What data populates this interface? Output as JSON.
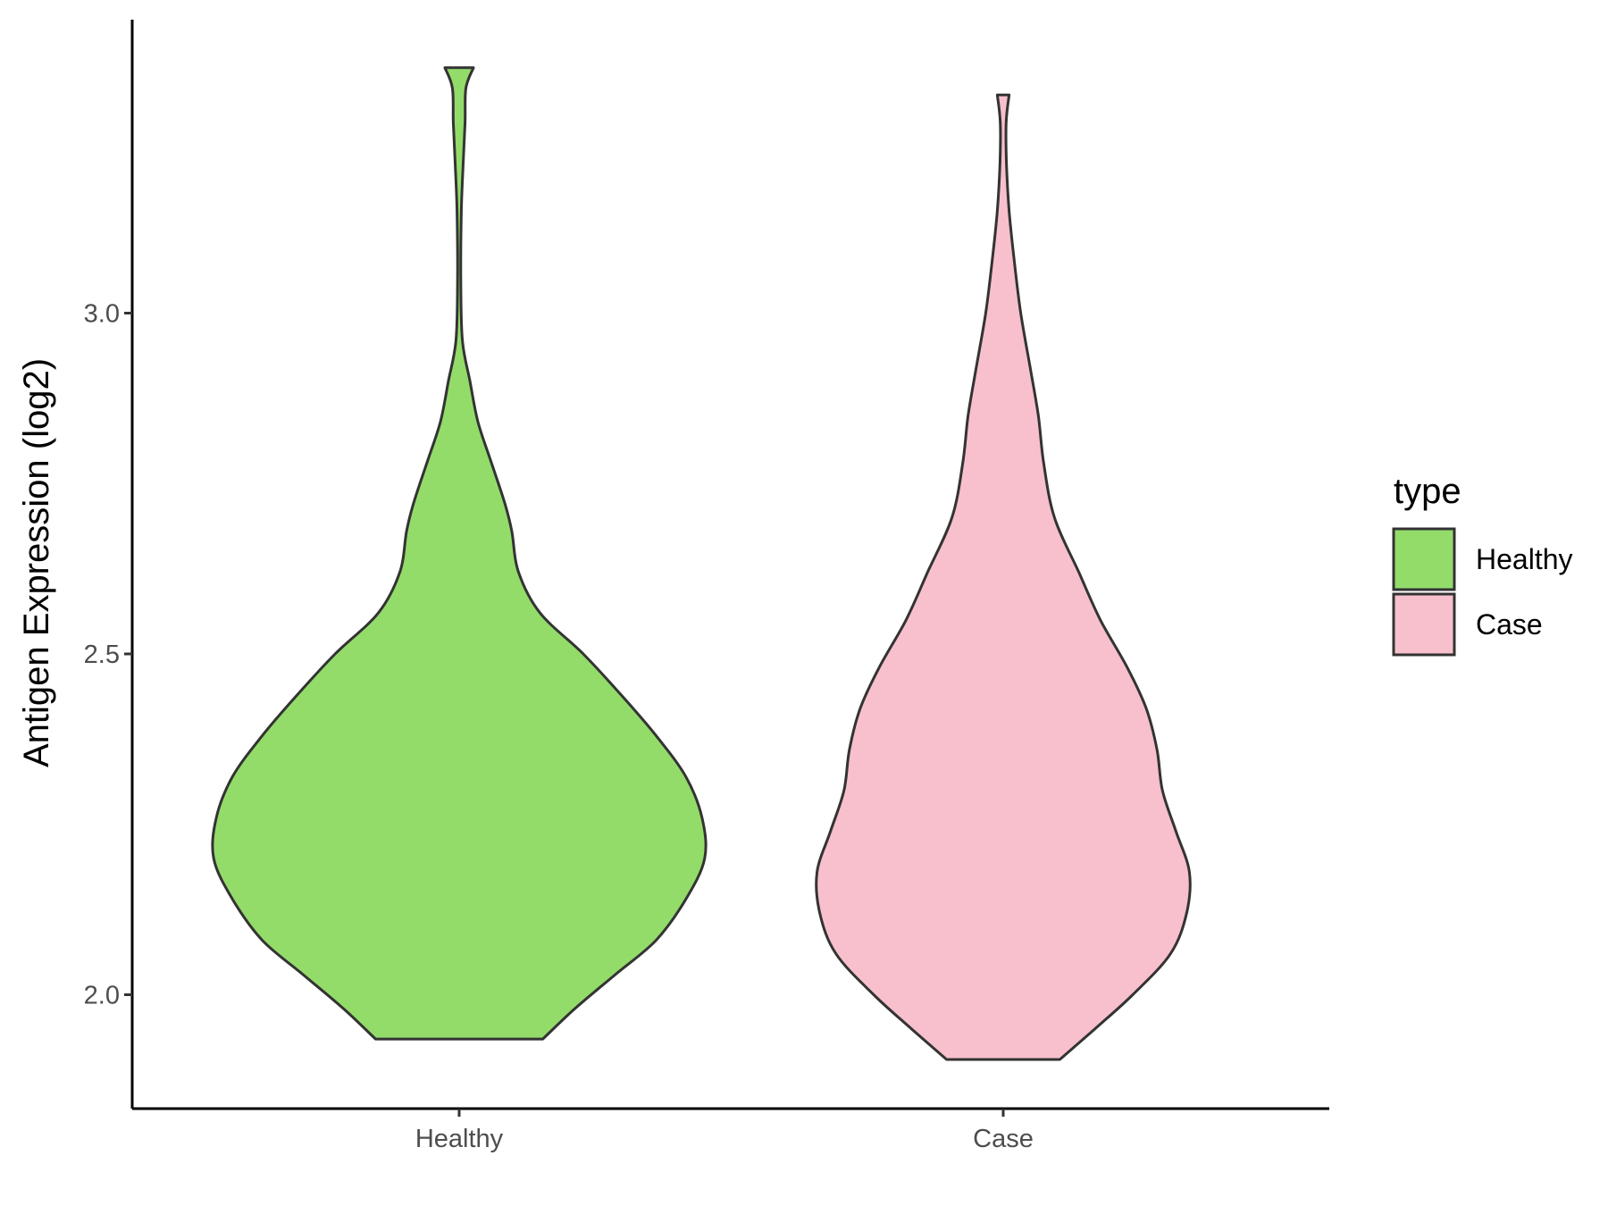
{
  "chart_data": {
    "type": "violin",
    "ylabel": "Antigen Expression (log2)",
    "xlabel": "",
    "categories": [
      "Healthy",
      "Case"
    ],
    "ylim": [
      1.83,
      3.42
    ],
    "yticks": [
      2.0,
      2.5,
      3.0
    ],
    "ytick_labels": [
      "2.0",
      "2.5",
      "3.0"
    ],
    "legend": {
      "title": "type",
      "position": "right",
      "entries": [
        {
          "label": "Healthy",
          "color": "#93dc6a"
        },
        {
          "label": "Case",
          "color": "#f7c0cc"
        }
      ]
    },
    "series": [
      {
        "name": "Healthy",
        "color": "#93dc6a",
        "min": 1.935,
        "max": 3.36,
        "density_profile": [
          [
            1.935,
            0.31
          ],
          [
            1.98,
            0.43
          ],
          [
            2.03,
            0.58
          ],
          [
            2.08,
            0.73
          ],
          [
            2.14,
            0.84
          ],
          [
            2.2,
            0.91
          ],
          [
            2.26,
            0.9
          ],
          [
            2.32,
            0.84
          ],
          [
            2.38,
            0.73
          ],
          [
            2.44,
            0.6
          ],
          [
            2.5,
            0.46
          ],
          [
            2.56,
            0.3
          ],
          [
            2.62,
            0.22
          ],
          [
            2.68,
            0.195
          ],
          [
            2.72,
            0.17
          ],
          [
            2.78,
            0.12
          ],
          [
            2.84,
            0.07
          ],
          [
            2.9,
            0.04
          ],
          [
            2.96,
            0.012
          ],
          [
            3.05,
            0.006
          ],
          [
            3.15,
            0.008
          ],
          [
            3.22,
            0.015
          ],
          [
            3.28,
            0.022
          ],
          [
            3.33,
            0.025
          ],
          [
            3.36,
            0.053
          ]
        ]
      },
      {
        "name": "Case",
        "color": "#f7c0cc",
        "min": 1.905,
        "max": 3.32,
        "density_profile": [
          [
            1.905,
            0.21
          ],
          [
            1.95,
            0.34
          ],
          [
            2.0,
            0.48
          ],
          [
            2.06,
            0.62
          ],
          [
            2.12,
            0.68
          ],
          [
            2.18,
            0.69
          ],
          [
            2.24,
            0.64
          ],
          [
            2.3,
            0.59
          ],
          [
            2.36,
            0.57
          ],
          [
            2.42,
            0.53
          ],
          [
            2.48,
            0.46
          ],
          [
            2.55,
            0.36
          ],
          [
            2.62,
            0.28
          ],
          [
            2.7,
            0.19
          ],
          [
            2.78,
            0.15
          ],
          [
            2.85,
            0.13
          ],
          [
            2.92,
            0.1
          ],
          [
            3.0,
            0.065
          ],
          [
            3.08,
            0.04
          ],
          [
            3.15,
            0.022
          ],
          [
            3.22,
            0.012
          ],
          [
            3.28,
            0.011
          ],
          [
            3.32,
            0.022
          ]
        ]
      }
    ]
  }
}
